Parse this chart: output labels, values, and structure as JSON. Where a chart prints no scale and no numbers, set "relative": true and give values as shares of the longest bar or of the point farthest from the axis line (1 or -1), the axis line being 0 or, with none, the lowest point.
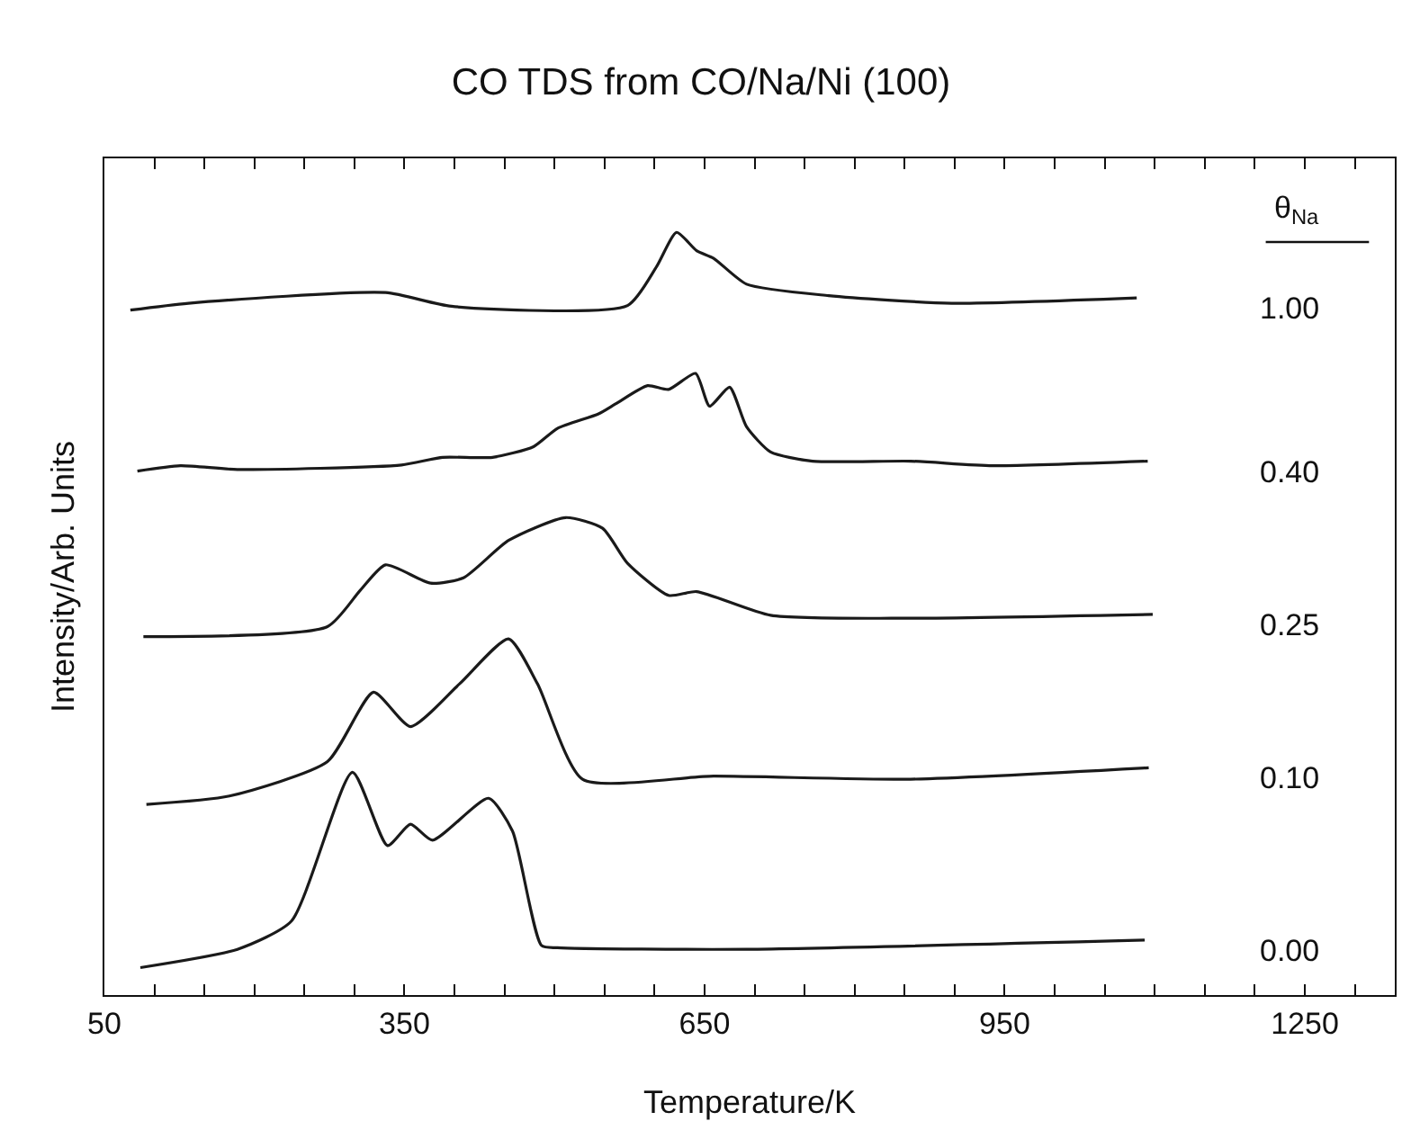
{
  "chart_data": {
    "type": "line",
    "title": "CO TDS from CO/Na/Ni (100)",
    "xlabel": "Temperature/K",
    "ylabel": "Intensity/Arb. Units",
    "legend_title": "θ$_{Na}$",
    "relative": true,
    "legend": false,
    "marker": "none",
    "line_style": "solid",
    "xlim": [
      50,
      1340
    ],
    "xticks": [
      50,
      {
        "value": 100,
        "label": null
      },
      {
        "value": 150,
        "label": null
      },
      {
        "value": 200,
        "label": null
      },
      {
        "value": 250,
        "label": null
      },
      {
        "value": 300,
        "label": null
      },
      350,
      {
        "value": 400,
        "label": null
      },
      {
        "value": 450,
        "label": null
      },
      {
        "value": 500,
        "label": null
      },
      {
        "value": 550,
        "label": null
      },
      {
        "value": 600,
        "label": null
      },
      650,
      {
        "value": 700,
        "label": null
      },
      {
        "value": 750,
        "label": null
      },
      {
        "value": 800,
        "label": null
      },
      {
        "value": 850,
        "label": null
      },
      {
        "value": 900,
        "label": null
      },
      950,
      {
        "value": 1000,
        "label": null
      },
      {
        "value": 1050,
        "label": null
      },
      {
        "value": 1100,
        "label": null
      },
      {
        "value": 1150,
        "label": null
      },
      {
        "value": 1200,
        "label": null
      },
      1250,
      {
        "value": 1300,
        "label": null
      }
    ],
    "series": [
      {
        "name": "1.00",
        "color": "#1a1a1a",
        "x": [
          76,
          134,
          331,
          397,
          573,
          602,
          622,
          642,
          659,
          692,
          774,
          897,
          1082
        ],
        "values": [
          0.898,
          0.907,
          0.921,
          0.903,
          0.904,
          0.955,
          1.0,
          0.976,
          0.966,
          0.932,
          0.917,
          0.907,
          0.914
        ]
      },
      {
        "name": "0.40",
        "color": "#1a1a1a",
        "x": [
          83,
          126,
          183,
          347,
          388,
          438,
          479,
          503,
          544,
          561,
          593,
          614,
          641,
          655,
          675,
          692,
          716,
          758,
          856,
          938,
          1093
        ],
        "values": [
          0.687,
          0.694,
          0.689,
          0.695,
          0.705,
          0.705,
          0.719,
          0.743,
          0.762,
          0.775,
          0.799,
          0.794,
          0.815,
          0.772,
          0.797,
          0.745,
          0.712,
          0.7,
          0.7,
          0.694,
          0.7
        ]
      },
      {
        "name": "0.25",
        "color": "#1a1a1a",
        "x": [
          89,
          273,
          306,
          331,
          376,
          409,
          454,
          511,
          548,
          573,
          614,
          642,
          716,
          856,
          1098
        ],
        "values": [
          0.47,
          0.483,
          0.531,
          0.564,
          0.54,
          0.547,
          0.596,
          0.626,
          0.612,
          0.566,
          0.524,
          0.529,
          0.498,
          0.494,
          0.499
        ]
      },
      {
        "name": "0.10",
        "color": "#1a1a1a",
        "x": [
          92,
          175,
          273,
          319,
          356,
          405,
          454,
          483,
          528,
          659,
          856,
          1094
        ],
        "values": [
          0.25,
          0.261,
          0.306,
          0.397,
          0.352,
          0.408,
          0.467,
          0.408,
          0.283,
          0.287,
          0.283,
          0.298
        ]
      },
      {
        "name": "0.00",
        "color": "#1a1a1a",
        "x": [
          86,
          183,
          237,
          298,
          333,
          356,
          378,
          434,
          458,
          487,
          503,
          692,
          1090
        ],
        "values": [
          0.036,
          0.06,
          0.097,
          0.292,
          0.196,
          0.224,
          0.203,
          0.258,
          0.215,
          0.065,
          0.062,
          0.06,
          0.072
        ]
      }
    ]
  }
}
